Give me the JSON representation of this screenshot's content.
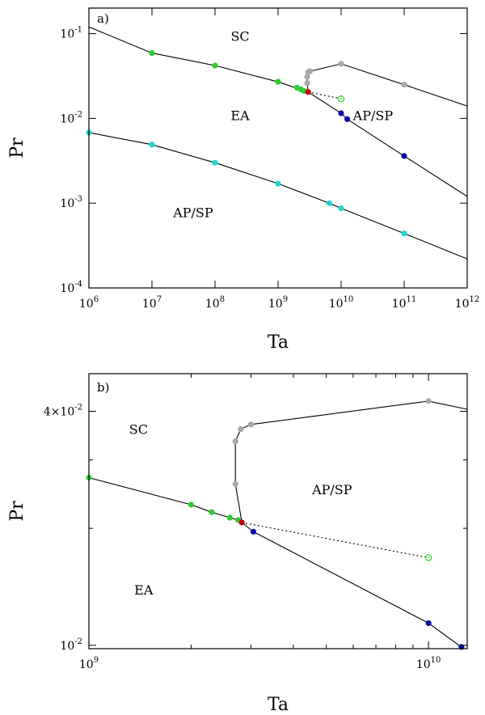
{
  "chart_data": [
    {
      "type": "line",
      "panel_label": "a)",
      "xlabel": "Ta",
      "ylabel": "Pr",
      "x_scale": "log",
      "y_scale": "log",
      "xlim": [
        1000000.0,
        1000000000000.0
      ],
      "ylim": [
        0.0001,
        0.2
      ],
      "x_ticks": [
        {
          "v": 1000000.0,
          "base": "10",
          "exp": "6"
        },
        {
          "v": 10000000.0,
          "base": "10",
          "exp": "7"
        },
        {
          "v": 100000000.0,
          "base": "10",
          "exp": "8"
        },
        {
          "v": 1000000000.0,
          "base": "10",
          "exp": "9"
        },
        {
          "v": 10000000000.0,
          "base": "10",
          "exp": "10"
        },
        {
          "v": 100000000000.0,
          "base": "10",
          "exp": "11"
        },
        {
          "v": 1000000000000.0,
          "base": "10",
          "exp": "12"
        }
      ],
      "y_ticks": [
        {
          "v": 0.0001,
          "base": "10",
          "exp": "-4"
        },
        {
          "v": 0.001,
          "base": "10",
          "exp": "-3"
        },
        {
          "v": 0.01,
          "base": "10",
          "exp": "-2"
        },
        {
          "v": 0.1,
          "base": "10",
          "exp": "-1"
        }
      ],
      "region_labels": [
        {
          "text": "SC",
          "x": 250000000.0,
          "y": 0.082
        },
        {
          "text": "EA",
          "x": 250000000.0,
          "y": 0.0095
        },
        {
          "text": "AP/SP",
          "x": 32000000000.0,
          "y": 0.0095
        },
        {
          "text": "AP/SP",
          "x": 45000000.0,
          "y": 0.00068
        }
      ],
      "lines": [
        {
          "style": "solid",
          "points": [
            [
              1000000.0,
              0.12
            ],
            [
              10000000.0,
              0.059
            ],
            [
              100000000.0,
              0.042
            ],
            [
              1000000000.0,
              0.027
            ],
            [
              3000000000.0,
              0.0205
            ]
          ]
        },
        {
          "style": "solid",
          "points": [
            [
              3000000000.0,
              0.0205
            ],
            [
              10000000000.0,
              0.0115
            ],
            [
              12500000000.0,
              0.0098
            ],
            [
              100000000000.0,
              0.0036
            ],
            [
              1000000000000.0,
              0.0012
            ]
          ]
        },
        {
          "style": "solid",
          "points": [
            [
              3000000000.0,
              0.0205
            ],
            [
              2900000000.0,
              0.026
            ],
            [
              2900000000.0,
              0.031
            ],
            [
              3000000000.0,
              0.035
            ],
            [
              3200000000.0,
              0.036
            ],
            [
              10000000000.0,
              0.044
            ],
            [
              100000000000.0,
              0.025
            ],
            [
              1000000000000.0,
              0.014
            ]
          ]
        },
        {
          "style": "dotted",
          "points": [
            [
              3000000000.0,
              0.0205
            ],
            [
              10000000000.0,
              0.017
            ]
          ]
        },
        {
          "style": "solid",
          "points": [
            [
              1000000.0,
              0.0068
            ],
            [
              10000000.0,
              0.0049
            ],
            [
              100000000.0,
              0.003
            ],
            [
              1000000000.0,
              0.0017
            ],
            [
              6500000000.0,
              0.001
            ],
            [
              10000000000.0,
              0.00087
            ],
            [
              100000000000.0,
              0.00044
            ],
            [
              1000000000000.0,
              0.00022
            ]
          ]
        }
      ],
      "markers": [
        {
          "color": "#2ecc2e",
          "kind": "filled",
          "points": [
            [
              10000000.0,
              0.059
            ],
            [
              100000000.0,
              0.042
            ],
            [
              1000000000.0,
              0.027
            ],
            [
              2000000000.0,
              0.023
            ],
            [
              2300000000.0,
              0.022
            ],
            [
              2600000000.0,
              0.021
            ]
          ]
        },
        {
          "color": "#a8a8a8",
          "kind": "filled",
          "points": [
            [
              2900000000.0,
              0.026
            ],
            [
              2900000000.0,
              0.031
            ],
            [
              3000000000.0,
              0.035
            ],
            [
              3200000000.0,
              0.036
            ],
            [
              10000000000.0,
              0.044
            ],
            [
              100000000000.0,
              0.025
            ]
          ]
        },
        {
          "color": "#c00000",
          "kind": "filled",
          "points": [
            [
              3000000000.0,
              0.0205
            ]
          ]
        },
        {
          "color": "#0a0aa8",
          "kind": "filled",
          "points": [
            [
              10000000000.0,
              0.0115
            ],
            [
              12500000000.0,
              0.0098
            ],
            [
              100000000000.0,
              0.0036
            ]
          ]
        },
        {
          "color": "#2ecc2e",
          "kind": "open",
          "points": [
            [
              10000000000.0,
              0.017
            ]
          ]
        },
        {
          "color": "#22d4d4",
          "kind": "filled",
          "points": [
            [
              1000000.0,
              0.0068
            ],
            [
              10000000.0,
              0.0049
            ],
            [
              100000000.0,
              0.003
            ],
            [
              1000000000.0,
              0.0017
            ],
            [
              6500000000.0,
              0.001
            ],
            [
              10000000000.0,
              0.00087
            ],
            [
              100000000000.0,
              0.00044
            ]
          ]
        }
      ]
    },
    {
      "type": "line",
      "panel_label": "b)",
      "xlabel": "Ta",
      "ylabel": "Pr",
      "x_scale": "log",
      "y_scale": "log",
      "xlim": [
        1000000000.0,
        13000000000.0
      ],
      "ylim": [
        0.0098,
        0.05
      ],
      "x_ticks": [
        {
          "v": 1000000000.0,
          "base": "10",
          "exp": "9"
        },
        {
          "v": 10000000000.0,
          "base": "10",
          "exp": "10"
        }
      ],
      "y_ticks": [
        {
          "v": 0.01,
          "base": "10",
          "exp": "-2",
          "prefix": ""
        },
        {
          "v": 0.04,
          "base": "10",
          "exp": "-2",
          "prefix": "4×"
        }
      ],
      "region_labels": [
        {
          "text": "SC",
          "x": 1400000000.0,
          "y": 0.035
        },
        {
          "text": "AP/SP",
          "x": 5200000000.0,
          "y": 0.0245
        },
        {
          "text": "EA",
          "x": 1450000000.0,
          "y": 0.0135
        }
      ],
      "lines": [
        {
          "style": "solid",
          "points": [
            [
              1000000000.0,
              0.027
            ],
            [
              2000000000.0,
              0.023
            ],
            [
              2300000000.0,
              0.022
            ],
            [
              2600000000.0,
              0.0213
            ],
            [
              2750000000.0,
              0.021
            ],
            [
              2820000000.0,
              0.0207
            ]
          ]
        },
        {
          "style": "solid",
          "points": [
            [
              2820000000.0,
              0.0207
            ],
            [
              3050000000.0,
              0.0196
            ],
            [
              10000000000.0,
              0.0114
            ],
            [
              12500000000.0,
              0.0099
            ]
          ]
        },
        {
          "style": "solid",
          "points": [
            [
              2820000000.0,
              0.0207
            ],
            [
              2700000000.0,
              0.026
            ],
            [
              2700000000.0,
              0.0335
            ],
            [
              2800000000.0,
              0.036
            ],
            [
              3000000000.0,
              0.037
            ],
            [
              10000000000.0,
              0.0425
            ],
            [
              13000000000.0,
              0.0405
            ]
          ]
        },
        {
          "style": "dotted",
          "points": [
            [
              2820000000.0,
              0.0207
            ],
            [
              10000000000.0,
              0.0168
            ]
          ]
        }
      ],
      "markers": [
        {
          "color": "#2ecc2e",
          "kind": "filled",
          "points": [
            [
              1000000000.0,
              0.027
            ],
            [
              2000000000.0,
              0.023
            ],
            [
              2300000000.0,
              0.022
            ],
            [
              2600000000.0,
              0.0213
            ],
            [
              2750000000.0,
              0.021
            ]
          ]
        },
        {
          "color": "#a8a8a8",
          "kind": "filled",
          "points": [
            [
              2700000000.0,
              0.026
            ],
            [
              2700000000.0,
              0.0335
            ],
            [
              2800000000.0,
              0.036
            ],
            [
              3000000000.0,
              0.037
            ],
            [
              10000000000.0,
              0.0425
            ]
          ]
        },
        {
          "color": "#c00000",
          "kind": "filled",
          "points": [
            [
              2820000000.0,
              0.0207
            ]
          ]
        },
        {
          "color": "#0a0aa8",
          "kind": "filled",
          "points": [
            [
              3050000000.0,
              0.0196
            ],
            [
              10000000000.0,
              0.0114
            ],
            [
              12500000000.0,
              0.0099
            ]
          ]
        },
        {
          "color": "#2ecc2e",
          "kind": "open",
          "points": [
            [
              10000000000.0,
              0.0168
            ]
          ]
        }
      ]
    }
  ]
}
